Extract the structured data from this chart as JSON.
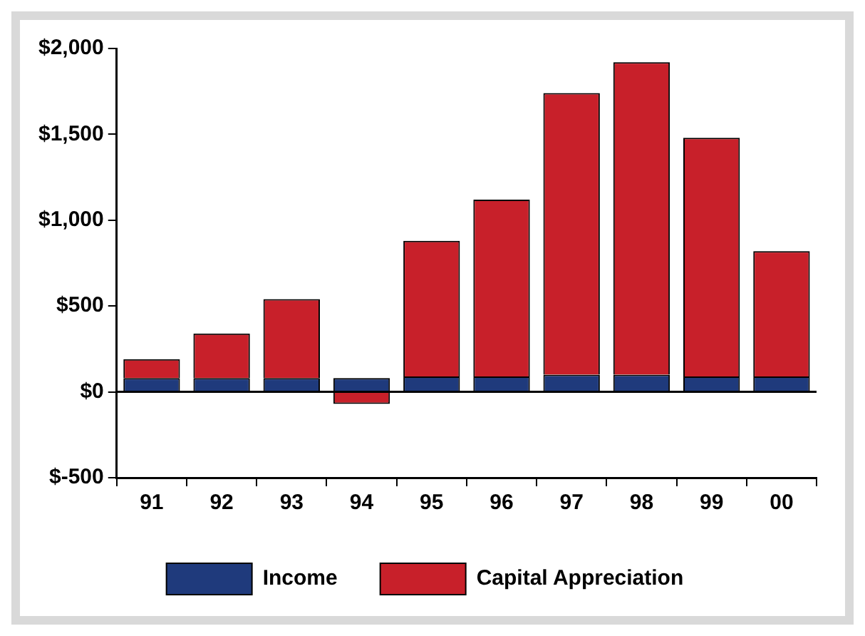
{
  "chart_data": {
    "type": "bar",
    "stacked": true,
    "categories": [
      "91",
      "92",
      "93",
      "94",
      "95",
      "96",
      "97",
      "98",
      "99",
      "00"
    ],
    "series": [
      {
        "name": "Income",
        "color": "#1f3a7c",
        "values": [
          80,
          80,
          80,
          80,
          90,
          90,
          100,
          100,
          90,
          90
        ]
      },
      {
        "name": "Capital Appreciation",
        "color": "#c8202a",
        "values": [
          110,
          260,
          460,
          -70,
          790,
          1030,
          1640,
          1820,
          1390,
          730
        ]
      }
    ],
    "ylim": [
      -500,
      2000
    ],
    "yticks": [
      {
        "value": -500,
        "label": "$-500"
      },
      {
        "value": 0,
        "label": "$0"
      },
      {
        "value": 500,
        "label": "$500"
      },
      {
        "value": 1000,
        "label": "$1,000"
      },
      {
        "value": 1500,
        "label": "$1,500"
      },
      {
        "value": 2000,
        "label": "$2,000"
      }
    ],
    "grid": false,
    "ref_lines": [
      {
        "axis": "y",
        "value": 0
      }
    ],
    "legend": "bottom"
  }
}
